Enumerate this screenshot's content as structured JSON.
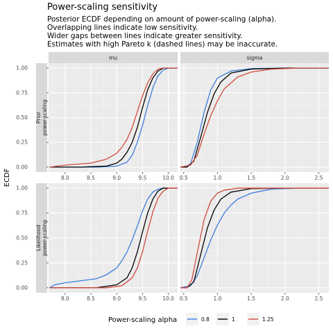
{
  "chart_data": {
    "type": "line",
    "title": "Power-scaling sensitivity",
    "subtitle_lines": [
      "Posterior ECDF depending on amount of power-scaling (alpha).",
      "Overlapping lines indicate low sensitivity.",
      "Wider gaps between lines indicate greater sensitivity.",
      "Estimates with high Pareto k (dashed lines) may be inaccurate."
    ],
    "ylabel": "ECDF",
    "y_ticks": [
      "0.00",
      "0.25",
      "0.50",
      "0.75",
      "1.00"
    ],
    "y_tick_values": [
      0,
      0.25,
      0.5,
      0.75,
      1
    ],
    "ylim": [
      -0.05,
      1.05
    ],
    "columns": [
      {
        "name": "mu",
        "xlim": [
          7.68,
          10.18
        ],
        "x_ticks": [
          "8.0",
          "8.5",
          "9.0",
          "9.5",
          "10.0"
        ],
        "x_tick_values": [
          8.0,
          8.5,
          9.0,
          9.5,
          10.0
        ]
      },
      {
        "name": "sigma",
        "xlim": [
          0.45,
          2.65
        ],
        "x_ticks": [
          "0.5",
          "1.0",
          "1.5",
          "2.0",
          "2.5"
        ],
        "x_tick_values": [
          0.5,
          1.0,
          1.5,
          2.0,
          2.5
        ]
      }
    ],
    "rows": [
      {
        "name": "Prior power-scaling",
        "lines": [
          "Prior",
          "power-scaling"
        ]
      },
      {
        "name": "Likelihood power-scaling",
        "lines": [
          "Likelihood",
          "power-scaling"
        ]
      }
    ],
    "legend": {
      "title": "Power-scaling alpha",
      "position": "bottom",
      "items": [
        {
          "label": "0.8",
          "color": "#3b7ddd"
        },
        {
          "label": "1",
          "color": "#000000"
        },
        {
          "label": "1.25",
          "color": "#d04a3c"
        }
      ]
    },
    "grid": true,
    "panels": [
      {
        "row": "Prior power-scaling",
        "col": "mu",
        "series": [
          {
            "alpha": "0.8",
            "color": "#3b7ddd",
            "points": [
              [
                7.7,
                0
              ],
              [
                8.6,
                0
              ],
              [
                9.0,
                0.01
              ],
              [
                9.2,
                0.05
              ],
              [
                9.3,
                0.12
              ],
              [
                9.4,
                0.25
              ],
              [
                9.5,
                0.42
              ],
              [
                9.6,
                0.62
              ],
              [
                9.7,
                0.8
              ],
              [
                9.8,
                0.92
              ],
              [
                9.9,
                0.98
              ],
              [
                10.0,
                1
              ],
              [
                10.18,
                1
              ]
            ]
          },
          {
            "alpha": "1",
            "color": "#000000",
            "points": [
              [
                7.7,
                0
              ],
              [
                8.3,
                0
              ],
              [
                8.8,
                0.01
              ],
              [
                9.0,
                0.04
              ],
              [
                9.1,
                0.08
              ],
              [
                9.2,
                0.15
              ],
              [
                9.3,
                0.25
              ],
              [
                9.4,
                0.4
              ],
              [
                9.5,
                0.6
              ],
              [
                9.6,
                0.78
              ],
              [
                9.7,
                0.9
              ],
              [
                9.8,
                0.97
              ],
              [
                9.9,
                1
              ],
              [
                10.18,
                1
              ]
            ]
          },
          {
            "alpha": "1.25",
            "color": "#d04a3c",
            "points": [
              [
                7.7,
                0
              ],
              [
                8.0,
                0.02
              ],
              [
                8.5,
                0.04
              ],
              [
                8.8,
                0.08
              ],
              [
                9.0,
                0.14
              ],
              [
                9.1,
                0.2
              ],
              [
                9.2,
                0.28
              ],
              [
                9.3,
                0.4
              ],
              [
                9.4,
                0.56
              ],
              [
                9.5,
                0.72
              ],
              [
                9.6,
                0.85
              ],
              [
                9.7,
                0.94
              ],
              [
                9.8,
                0.99
              ],
              [
                9.9,
                1
              ],
              [
                10.18,
                1
              ]
            ]
          }
        ]
      },
      {
        "row": "Prior power-scaling",
        "col": "sigma",
        "series": [
          {
            "alpha": "0.8",
            "color": "#3b7ddd",
            "points": [
              [
                0.45,
                0
              ],
              [
                0.5,
                0
              ],
              [
                0.6,
                0.03
              ],
              [
                0.7,
                0.25
              ],
              [
                0.8,
                0.55
              ],
              [
                0.9,
                0.78
              ],
              [
                1.0,
                0.9
              ],
              [
                1.2,
                0.97
              ],
              [
                1.5,
                0.995
              ],
              [
                2.0,
                1
              ],
              [
                2.65,
                1
              ]
            ]
          },
          {
            "alpha": "1",
            "color": "#000000",
            "points": [
              [
                0.45,
                0
              ],
              [
                0.55,
                0
              ],
              [
                0.65,
                0.06
              ],
              [
                0.75,
                0.3
              ],
              [
                0.85,
                0.55
              ],
              [
                0.95,
                0.74
              ],
              [
                1.05,
                0.86
              ],
              [
                1.2,
                0.95
              ],
              [
                1.5,
                0.99
              ],
              [
                2.0,
                1
              ],
              [
                2.65,
                1
              ]
            ]
          },
          {
            "alpha": "1.25",
            "color": "#d04a3c",
            "points": [
              [
                0.45,
                0
              ],
              [
                0.6,
                0.02
              ],
              [
                0.7,
                0.12
              ],
              [
                0.8,
                0.33
              ],
              [
                0.9,
                0.52
              ],
              [
                1.0,
                0.67
              ],
              [
                1.1,
                0.79
              ],
              [
                1.3,
                0.91
              ],
              [
                1.5,
                0.96
              ],
              [
                1.8,
                0.99
              ],
              [
                2.2,
                1
              ],
              [
                2.65,
                1
              ]
            ]
          }
        ]
      },
      {
        "row": "Likelihood power-scaling",
        "col": "mu",
        "series": [
          {
            "alpha": "0.8",
            "color": "#3b7ddd",
            "points": [
              [
                7.7,
                0
              ],
              [
                7.8,
                0.03
              ],
              [
                8.0,
                0.05
              ],
              [
                8.3,
                0.07
              ],
              [
                8.6,
                0.09
              ],
              [
                8.8,
                0.13
              ],
              [
                9.0,
                0.2
              ],
              [
                9.1,
                0.27
              ],
              [
                9.2,
                0.36
              ],
              [
                9.3,
                0.48
              ],
              [
                9.4,
                0.62
              ],
              [
                9.5,
                0.77
              ],
              [
                9.6,
                0.89
              ],
              [
                9.7,
                0.96
              ],
              [
                9.8,
                0.99
              ],
              [
                9.9,
                1
              ],
              [
                10.18,
                1
              ]
            ]
          },
          {
            "alpha": "1",
            "color": "#000000",
            "points": [
              [
                7.7,
                0
              ],
              [
                8.6,
                0
              ],
              [
                9.0,
                0.03
              ],
              [
                9.2,
                0.1
              ],
              [
                9.3,
                0.2
              ],
              [
                9.4,
                0.36
              ],
              [
                9.5,
                0.56
              ],
              [
                9.6,
                0.75
              ],
              [
                9.7,
                0.89
              ],
              [
                9.8,
                0.97
              ],
              [
                9.9,
                1
              ],
              [
                10.18,
                1
              ]
            ]
          },
          {
            "alpha": "1.25",
            "color": "#d04a3c",
            "points": [
              [
                7.7,
                0
              ],
              [
                8.8,
                0
              ],
              [
                9.1,
                0.02
              ],
              [
                9.3,
                0.1
              ],
              [
                9.4,
                0.2
              ],
              [
                9.5,
                0.36
              ],
              [
                9.6,
                0.57
              ],
              [
                9.7,
                0.76
              ],
              [
                9.8,
                0.9
              ],
              [
                9.9,
                0.97
              ],
              [
                10.0,
                1
              ],
              [
                10.18,
                1
              ]
            ]
          }
        ]
      },
      {
        "row": "Likelihood power-scaling",
        "col": "sigma",
        "series": [
          {
            "alpha": "0.8",
            "color": "#3b7ddd",
            "points": [
              [
                0.45,
                0
              ],
              [
                0.6,
                0.02
              ],
              [
                0.7,
                0.12
              ],
              [
                0.8,
                0.3
              ],
              [
                0.9,
                0.48
              ],
              [
                1.0,
                0.63
              ],
              [
                1.1,
                0.75
              ],
              [
                1.2,
                0.83
              ],
              [
                1.3,
                0.89
              ],
              [
                1.5,
                0.95
              ],
              [
                1.8,
                0.99
              ],
              [
                2.2,
                1
              ],
              [
                2.65,
                1
              ]
            ]
          },
          {
            "alpha": "1",
            "color": "#000000",
            "points": [
              [
                0.45,
                0
              ],
              [
                0.55,
                0
              ],
              [
                0.65,
                0.06
              ],
              [
                0.75,
                0.33
              ],
              [
                0.85,
                0.6
              ],
              [
                0.95,
                0.78
              ],
              [
                1.05,
                0.89
              ],
              [
                1.2,
                0.96
              ],
              [
                1.5,
                0.995
              ],
              [
                2.0,
                1
              ],
              [
                2.65,
                1
              ]
            ]
          },
          {
            "alpha": "1.25",
            "color": "#d04a3c",
            "points": [
              [
                0.45,
                0
              ],
              [
                0.55,
                0
              ],
              [
                0.62,
                0.08
              ],
              [
                0.7,
                0.35
              ],
              [
                0.8,
                0.68
              ],
              [
                0.9,
                0.87
              ],
              [
                1.0,
                0.95
              ],
              [
                1.1,
                0.98
              ],
              [
                1.3,
                1
              ],
              [
                2.65,
                1
              ]
            ]
          }
        ]
      }
    ]
  }
}
